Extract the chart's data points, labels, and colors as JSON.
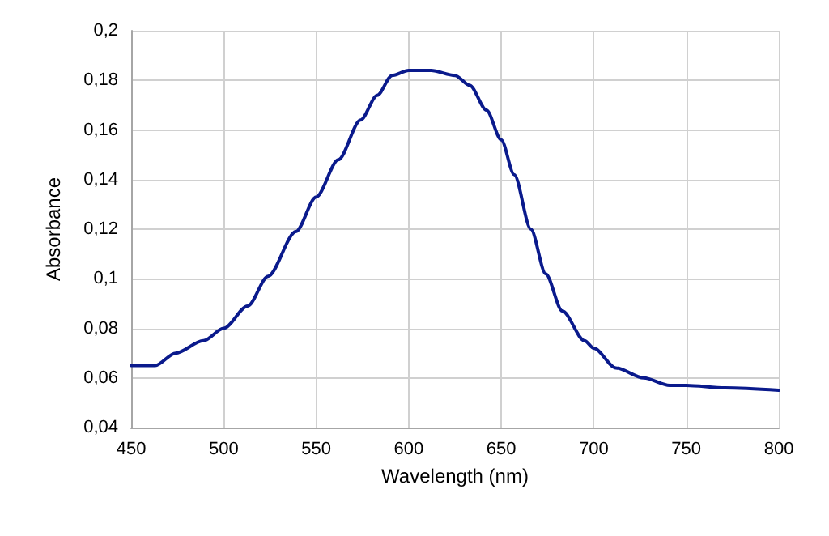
{
  "chart_data": {
    "type": "line",
    "xlabel": "Wavelength (nm)",
    "ylabel": "Absorbance",
    "grid": true,
    "marker": "none",
    "line_style": "solid",
    "xlim": [
      450,
      800
    ],
    "xticks": [
      450,
      500,
      550,
      600,
      650,
      700,
      750,
      800
    ],
    "ylim": [
      0.04,
      0.2
    ],
    "yticks": [
      {
        "value": 0.04,
        "label": "0,04"
      },
      {
        "value": 0.06,
        "label": "0,06"
      },
      {
        "value": 0.08,
        "label": "0,08"
      },
      {
        "value": 0.1,
        "label": "0,1"
      },
      {
        "value": 0.12,
        "label": "0,12"
      },
      {
        "value": 0.14,
        "label": "0,14"
      },
      {
        "value": 0.16,
        "label": "0,16"
      },
      {
        "value": 0.18,
        "label": "0,18"
      },
      {
        "value": 0.2,
        "label": "0,2"
      }
    ],
    "series": [
      {
        "color": "#0a1a8c",
        "x": [
          450,
          463,
          474,
          489,
          500,
          513,
          524,
          539,
          550,
          562,
          574,
          583,
          591,
          600,
          612,
          625,
          633,
          642,
          650,
          657,
          666,
          674,
          683,
          695,
          700,
          712,
          727,
          741,
          750,
          771,
          800
        ],
        "values": [
          0.065,
          0.065,
          0.07,
          0.075,
          0.08,
          0.089,
          0.101,
          0.119,
          0.133,
          0.148,
          0.164,
          0.174,
          0.182,
          0.184,
          0.184,
          0.182,
          0.178,
          0.168,
          0.156,
          0.142,
          0.12,
          0.102,
          0.087,
          0.075,
          0.072,
          0.064,
          0.06,
          0.057,
          0.057,
          0.056,
          0.055
        ]
      }
    ]
  }
}
